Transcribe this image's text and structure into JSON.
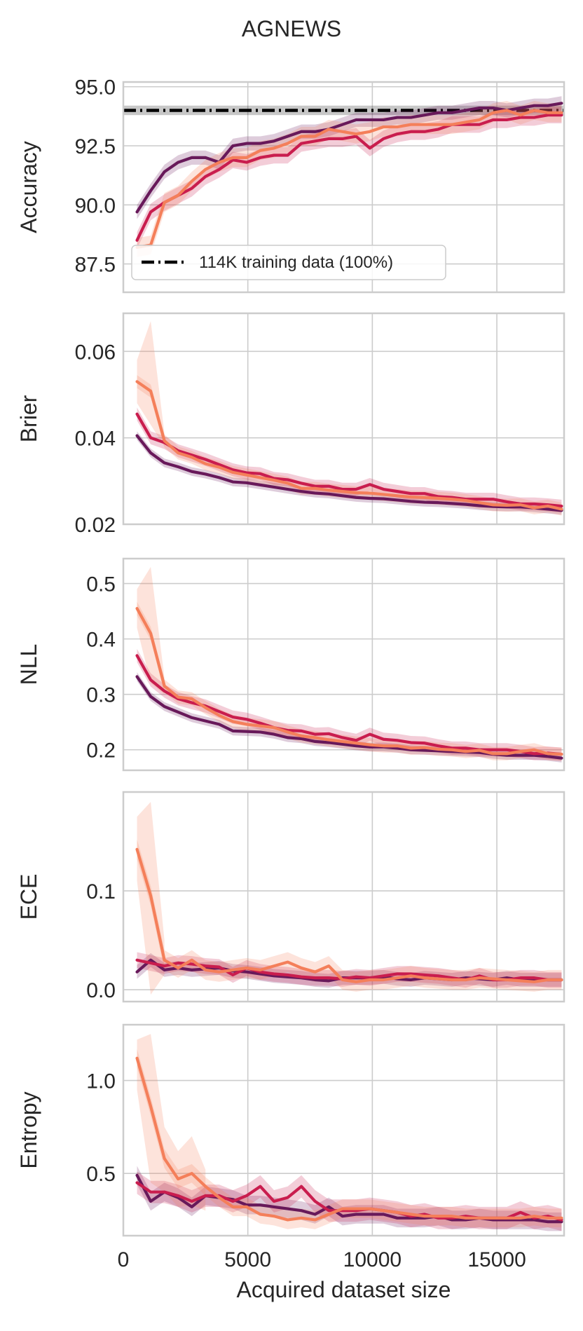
{
  "figure": {
    "title": "AGNEWS"
  },
  "colors": {
    "dark": "#68195a",
    "crimson": "#c91d4e",
    "orange": "#f47f5a",
    "grid": "#cccccc",
    "frame": "#cccccc"
  },
  "chart_data": [
    {
      "type": "line",
      "title": "AGNEWS",
      "ylabel": "Accuracy",
      "xlabel": "",
      "xlim": [
        0,
        17700
      ],
      "ylim": [
        86.3,
        95.2
      ],
      "xticks": [
        0,
        5000,
        10000,
        15000
      ],
      "yticks": [
        87.5,
        90.0,
        92.5,
        95.0
      ],
      "ytick_labels": [
        "87.5",
        "90.0",
        "92.5",
        "95.0"
      ],
      "show_xtick_labels": false,
      "grid": true,
      "x": [
        550,
        1100,
        1650,
        2200,
        2750,
        3300,
        3850,
        4400,
        4950,
        5500,
        6050,
        6600,
        7150,
        7700,
        8250,
        8800,
        9350,
        9900,
        10450,
        11000,
        11550,
        12100,
        12650,
        13200,
        13750,
        14300,
        14850,
        15400,
        15950,
        16500,
        17050,
        17600
      ],
      "series": [
        {
          "color": "dark",
          "values": [
            89.7,
            90.6,
            91.4,
            91.8,
            92.0,
            92.0,
            91.8,
            92.5,
            92.6,
            92.6,
            92.7,
            92.9,
            93.1,
            93.1,
            93.2,
            93.4,
            93.6,
            93.6,
            93.6,
            93.7,
            93.7,
            93.8,
            93.9,
            93.9,
            94.0,
            94.1,
            94.1,
            94.0,
            94.1,
            94.2,
            94.2,
            94.3
          ],
          "band": 0.3
        },
        {
          "color": "crimson",
          "values": [
            88.5,
            89.7,
            90.1,
            90.4,
            90.7,
            91.2,
            91.5,
            91.9,
            91.8,
            92.0,
            92.1,
            92.1,
            92.6,
            92.7,
            92.8,
            92.8,
            92.9,
            92.4,
            92.8,
            93.0,
            93.1,
            93.1,
            93.2,
            93.4,
            93.4,
            93.4,
            93.6,
            93.6,
            93.7,
            93.7,
            93.8,
            93.8
          ],
          "band": 0.35
        },
        {
          "color": "orange",
          "values": [
            88.2,
            88.3,
            90.1,
            90.4,
            91.0,
            91.5,
            91.8,
            92.0,
            92.0,
            92.3,
            92.4,
            92.6,
            92.9,
            92.9,
            93.2,
            93.1,
            93.0,
            93.1,
            93.3,
            93.3,
            93.4,
            93.4,
            93.4,
            93.4,
            93.5,
            93.6,
            93.9,
            94.0,
            93.8,
            94.0,
            93.9,
            93.9
          ],
          "band": 0.4
        }
      ],
      "reference_line": {
        "y": 94.0,
        "band": 0.2,
        "label": "114K training data (100%)"
      },
      "legend_position": "lower-left"
    },
    {
      "type": "line",
      "ylabel": "Brier",
      "xlabel": "",
      "xlim": [
        0,
        17700
      ],
      "ylim": [
        0.02,
        0.0688
      ],
      "xticks": [
        0,
        5000,
        10000,
        15000
      ],
      "yticks": [
        0.02,
        0.04,
        0.06
      ],
      "ytick_labels": [
        "0.02",
        "0.04",
        "0.06"
      ],
      "show_xtick_labels": false,
      "grid": true,
      "x": [
        550,
        1100,
        1650,
        2200,
        2750,
        3300,
        3850,
        4400,
        4950,
        5500,
        6050,
        6600,
        7150,
        7700,
        8250,
        8800,
        9350,
        9900,
        10450,
        11000,
        11550,
        12100,
        12650,
        13200,
        13750,
        14300,
        14850,
        15400,
        15950,
        16500,
        17050,
        17600
      ],
      "series": [
        {
          "color": "dark",
          "values": [
            0.0405,
            0.0365,
            0.0342,
            0.0333,
            0.0322,
            0.0316,
            0.0308,
            0.0298,
            0.0296,
            0.0291,
            0.0286,
            0.0281,
            0.0276,
            0.0272,
            0.027,
            0.0266,
            0.0262,
            0.026,
            0.0259,
            0.0256,
            0.0253,
            0.0251,
            0.025,
            0.0248,
            0.0246,
            0.0243,
            0.0241,
            0.024,
            0.024,
            0.0238,
            0.0235,
            0.0232
          ],
          "band": 0.001
        },
        {
          "color": "crimson",
          "values": [
            0.0455,
            0.04,
            0.0389,
            0.037,
            0.036,
            0.035,
            0.0338,
            0.0326,
            0.0319,
            0.0317,
            0.0306,
            0.0303,
            0.0295,
            0.0288,
            0.0288,
            0.0281,
            0.0281,
            0.0292,
            0.0281,
            0.0276,
            0.0271,
            0.0271,
            0.0264,
            0.0262,
            0.0258,
            0.0258,
            0.0258,
            0.0252,
            0.0247,
            0.0247,
            0.0245,
            0.0242
          ],
          "band": 0.0015
        },
        {
          "color": "orange",
          "values": [
            0.053,
            0.0508,
            0.0393,
            0.0365,
            0.0355,
            0.034,
            0.0332,
            0.032,
            0.0314,
            0.0308,
            0.0302,
            0.0295,
            0.0283,
            0.0283,
            0.0279,
            0.0276,
            0.0273,
            0.0272,
            0.0269,
            0.0266,
            0.0263,
            0.0262,
            0.026,
            0.0258,
            0.0255,
            0.025,
            0.0245,
            0.0244,
            0.0245,
            0.0238,
            0.0242,
            0.0235
          ],
          "band": 0.0015
        }
      ],
      "extra_bands": [
        {
          "color": "orange",
          "x": [
            550,
            1100,
            1650
          ],
          "lower": [
            0.048,
            0.043,
            0.038
          ],
          "upper": [
            0.058,
            0.067,
            0.041
          ]
        }
      ]
    },
    {
      "type": "line",
      "ylabel": "NLL",
      "xlabel": "",
      "xlim": [
        0,
        17700
      ],
      "ylim": [
        0.163,
        0.545
      ],
      "xticks": [
        0,
        5000,
        10000,
        15000
      ],
      "yticks": [
        0.2,
        0.3,
        0.4,
        0.5
      ],
      "ytick_labels": [
        "0.2",
        "0.3",
        "0.4",
        "0.5"
      ],
      "show_xtick_labels": false,
      "grid": true,
      "x": [
        550,
        1100,
        1650,
        2200,
        2750,
        3300,
        3850,
        4400,
        4950,
        5500,
        6050,
        6600,
        7150,
        7700,
        8250,
        8800,
        9350,
        9900,
        10450,
        11000,
        11550,
        12100,
        12650,
        13200,
        13750,
        14300,
        14850,
        15400,
        15950,
        16500,
        17050,
        17600
      ],
      "series": [
        {
          "color": "dark",
          "values": [
            0.332,
            0.296,
            0.278,
            0.268,
            0.258,
            0.252,
            0.246,
            0.234,
            0.233,
            0.232,
            0.228,
            0.222,
            0.22,
            0.215,
            0.213,
            0.21,
            0.207,
            0.205,
            0.205,
            0.203,
            0.2,
            0.199,
            0.198,
            0.197,
            0.196,
            0.195,
            0.192,
            0.19,
            0.19,
            0.19,
            0.188,
            0.185
          ],
          "band": 0.008
        },
        {
          "color": "crimson",
          "values": [
            0.37,
            0.326,
            0.306,
            0.292,
            0.285,
            0.279,
            0.269,
            0.259,
            0.255,
            0.248,
            0.24,
            0.235,
            0.234,
            0.228,
            0.229,
            0.222,
            0.217,
            0.228,
            0.219,
            0.217,
            0.213,
            0.212,
            0.207,
            0.203,
            0.203,
            0.2,
            0.2,
            0.2,
            0.197,
            0.193,
            0.194,
            0.192
          ],
          "band": 0.012
        },
        {
          "color": "orange",
          "values": [
            0.455,
            0.41,
            0.315,
            0.295,
            0.292,
            0.276,
            0.262,
            0.251,
            0.246,
            0.243,
            0.24,
            0.232,
            0.225,
            0.222,
            0.218,
            0.215,
            0.212,
            0.209,
            0.207,
            0.207,
            0.203,
            0.204,
            0.201,
            0.2,
            0.197,
            0.199,
            0.193,
            0.193,
            0.197,
            0.2,
            0.193,
            0.192
          ],
          "band": 0.012
        }
      ],
      "extra_bands": [
        {
          "color": "orange",
          "x": [
            550,
            1100,
            1650
          ],
          "lower": [
            0.42,
            0.32,
            0.3
          ],
          "upper": [
            0.49,
            0.53,
            0.33
          ]
        }
      ]
    },
    {
      "type": "line",
      "ylabel": "ECE",
      "xlabel": "",
      "xlim": [
        0,
        17700
      ],
      "ylim": [
        -0.012,
        0.2
      ],
      "xticks": [
        0,
        5000,
        10000,
        15000
      ],
      "yticks": [
        0.0,
        0.1
      ],
      "ytick_labels": [
        "0.0",
        "0.1"
      ],
      "show_xtick_labels": false,
      "grid": true,
      "x": [
        550,
        1100,
        1650,
        2200,
        2750,
        3300,
        3850,
        4400,
        4950,
        5500,
        6050,
        6600,
        7150,
        7700,
        8250,
        8800,
        9350,
        9900,
        10450,
        11000,
        11550,
        12100,
        12650,
        13200,
        13750,
        14300,
        14850,
        15400,
        15950,
        16500,
        17050,
        17600
      ],
      "series": [
        {
          "color": "dark",
          "values": [
            0.018,
            0.03,
            0.02,
            0.022,
            0.02,
            0.021,
            0.022,
            0.019,
            0.018,
            0.016,
            0.014,
            0.013,
            0.012,
            0.01,
            0.009,
            0.012,
            0.012,
            0.012,
            0.013,
            0.011,
            0.01,
            0.012,
            0.011,
            0.01,
            0.012,
            0.011,
            0.01,
            0.012,
            0.01,
            0.01,
            0.01,
            0.01
          ],
          "band": 0.007
        },
        {
          "color": "crimson",
          "values": [
            0.03,
            0.027,
            0.024,
            0.027,
            0.026,
            0.024,
            0.023,
            0.015,
            0.022,
            0.018,
            0.016,
            0.015,
            0.013,
            0.012,
            0.012,
            0.011,
            0.013,
            0.012,
            0.014,
            0.016,
            0.016,
            0.015,
            0.014,
            0.012,
            0.01,
            0.014,
            0.01,
            0.01,
            0.012,
            0.012,
            0.01,
            0.01
          ],
          "band": 0.008
        },
        {
          "color": "orange",
          "values": [
            0.142,
            0.095,
            0.03,
            0.022,
            0.03,
            0.02,
            0.018,
            0.02,
            0.022,
            0.02,
            0.024,
            0.028,
            0.022,
            0.018,
            0.024,
            0.01,
            0.008,
            0.01,
            0.01,
            0.012,
            0.014,
            0.012,
            0.011,
            0.01,
            0.01,
            0.012,
            0.011,
            0.01,
            0.009,
            0.008,
            0.01,
            0.01
          ],
          "band": 0.01
        }
      ],
      "extra_bands": [
        {
          "color": "orange",
          "x": [
            550,
            1100,
            1650
          ],
          "lower": [
            0.11,
            -0.005,
            0.015
          ],
          "upper": [
            0.175,
            0.19,
            0.05
          ]
        }
      ]
    },
    {
      "type": "line",
      "ylabel": "Entropy",
      "xlabel": "Acquired dataset size",
      "xlim": [
        0,
        17700
      ],
      "ylim": [
        0.165,
        1.3
      ],
      "xticks": [
        0,
        5000,
        10000,
        15000
      ],
      "xtick_labels": [
        "0",
        "5000",
        "10000",
        "15000"
      ],
      "yticks": [
        0.5,
        1.0
      ],
      "ytick_labels": [
        "0.5",
        "1.0"
      ],
      "show_xtick_labels": true,
      "grid": true,
      "x": [
        550,
        1100,
        1650,
        2200,
        2750,
        3300,
        3850,
        4400,
        4950,
        5500,
        6050,
        6600,
        7150,
        7700,
        8250,
        8800,
        9350,
        9900,
        10450,
        11000,
        11550,
        12100,
        12650,
        13200,
        13750,
        14300,
        14850,
        15400,
        15950,
        16500,
        17050,
        17600
      ],
      "series": [
        {
          "color": "dark",
          "values": [
            0.49,
            0.35,
            0.4,
            0.37,
            0.32,
            0.38,
            0.37,
            0.36,
            0.33,
            0.33,
            0.32,
            0.31,
            0.3,
            0.28,
            0.32,
            0.27,
            0.28,
            0.28,
            0.28,
            0.26,
            0.26,
            0.26,
            0.27,
            0.25,
            0.25,
            0.26,
            0.25,
            0.25,
            0.25,
            0.25,
            0.24,
            0.24
          ],
          "band": 0.05
        },
        {
          "color": "crimson",
          "values": [
            0.45,
            0.4,
            0.4,
            0.38,
            0.35,
            0.38,
            0.38,
            0.35,
            0.38,
            0.43,
            0.35,
            0.37,
            0.43,
            0.35,
            0.3,
            0.3,
            0.3,
            0.31,
            0.3,
            0.29,
            0.27,
            0.28,
            0.26,
            0.26,
            0.27,
            0.26,
            0.26,
            0.26,
            0.29,
            0.26,
            0.27,
            0.25
          ],
          "band": 0.06
        },
        {
          "color": "orange",
          "values": [
            1.12,
            0.86,
            0.58,
            0.47,
            0.5,
            0.43,
            0.37,
            0.32,
            0.32,
            0.28,
            0.27,
            0.25,
            0.26,
            0.25,
            0.28,
            0.31,
            0.31,
            0.31,
            0.3,
            0.29,
            0.28,
            0.27,
            0.27,
            0.27,
            0.26,
            0.26,
            0.26,
            0.26,
            0.26,
            0.27,
            0.26,
            0.26
          ],
          "band": 0.05
        }
      ],
      "extra_bands": [
        {
          "color": "orange",
          "x": [
            550,
            1100,
            1650,
            2200,
            2750,
            3300
          ],
          "lower": [
            0.95,
            0.45,
            0.4,
            0.32,
            0.33,
            0.3
          ],
          "upper": [
            1.22,
            1.25,
            0.75,
            0.62,
            0.7,
            0.52
          ]
        }
      ]
    }
  ]
}
